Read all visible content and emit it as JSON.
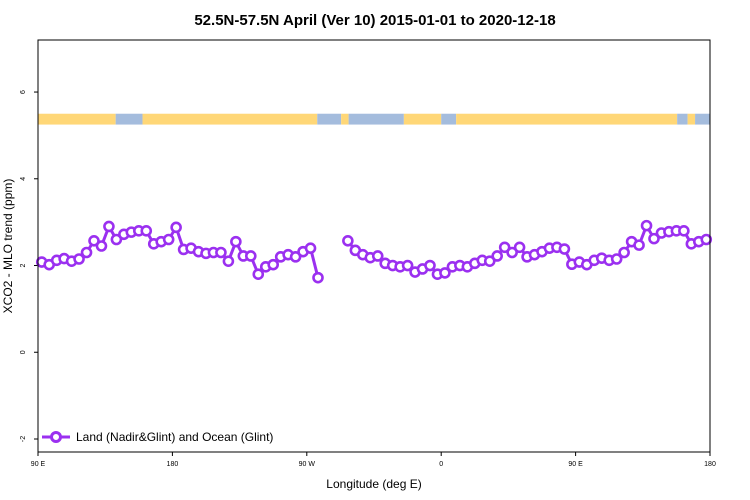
{
  "chart_data": {
    "type": "line",
    "title": "52.5N-57.5N April (Ver 10)   2015-01-01 to 2020-12-18",
    "xlabel": "Longitude (deg E)",
    "ylabel": "XCO2 - MLO trend (ppm)",
    "xlim": [
      90,
      540
    ],
    "ylim": [
      -2.3,
      7.2
    ],
    "x_ticks": [
      {
        "value": 90,
        "label": "90 E"
      },
      {
        "value": 180,
        "label": "180"
      },
      {
        "value": 270,
        "label": "90 W"
      },
      {
        "value": 360,
        "label": "0"
      },
      {
        "value": 450,
        "label": "90 E"
      },
      {
        "value": 540,
        "label": "180"
      }
    ],
    "y_ticks": [
      {
        "value": -2,
        "label": "-2"
      },
      {
        "value": 0,
        "label": "0"
      },
      {
        "value": 2,
        "label": "2"
      },
      {
        "value": 4,
        "label": "4"
      },
      {
        "value": 6,
        "label": "6"
      }
    ],
    "colors": {
      "series": "#9b30f0",
      "land": "#ffd777",
      "ocean": "#a4bcdd"
    },
    "land_ocean_band": {
      "y_range": [
        5.25,
        5.5
      ],
      "segments": [
        {
          "type": "land",
          "x0": 90,
          "x1": 142
        },
        {
          "type": "ocean",
          "x0": 142,
          "x1": 160
        },
        {
          "type": "land",
          "x0": 160,
          "x1": 277
        },
        {
          "type": "ocean",
          "x0": 277,
          "x1": 293
        },
        {
          "type": "land",
          "x0": 293,
          "x1": 298
        },
        {
          "type": "ocean",
          "x0": 298,
          "x1": 335
        },
        {
          "type": "land",
          "x0": 335,
          "x1": 360
        },
        {
          "type": "ocean",
          "x0": 360,
          "x1": 370
        },
        {
          "type": "land",
          "x0": 370,
          "x1": 518
        },
        {
          "type": "ocean",
          "x0": 518,
          "x1": 525
        },
        {
          "type": "land",
          "x0": 525,
          "x1": 530
        },
        {
          "type": "ocean",
          "x0": 530,
          "x1": 540
        }
      ]
    },
    "legend": {
      "position": "bottom-left",
      "entries": [
        "Land (Nadir&Glint) and Ocean (Glint)"
      ]
    },
    "series": [
      {
        "name": "Land (Nadir&Glint) and Ocean (Glint)",
        "segments": [
          [
            [
              92.5,
              2.08
            ],
            [
              97.5,
              2.02
            ],
            [
              102.5,
              2.12
            ],
            [
              107.5,
              2.16
            ],
            [
              112.5,
              2.1
            ],
            [
              117.5,
              2.15
            ],
            [
              122.5,
              2.3
            ],
            [
              127.5,
              2.57
            ],
            [
              132.5,
              2.45
            ],
            [
              137.5,
              2.9
            ],
            [
              142.5,
              2.6
            ],
            [
              147.5,
              2.72
            ],
            [
              152.5,
              2.77
            ],
            [
              157.5,
              2.8
            ],
            [
              162.5,
              2.8
            ],
            [
              167.5,
              2.5
            ],
            [
              172.5,
              2.55
            ],
            [
              177.5,
              2.6
            ],
            [
              182.5,
              2.88
            ],
            [
              187.5,
              2.37
            ],
            [
              192.5,
              2.4
            ],
            [
              197.5,
              2.32
            ],
            [
              202.5,
              2.28
            ],
            [
              207.5,
              2.3
            ],
            [
              212.5,
              2.3
            ],
            [
              217.5,
              2.1
            ],
            [
              222.5,
              2.55
            ],
            [
              227.5,
              2.22
            ],
            [
              232.5,
              2.22
            ],
            [
              237.5,
              1.8
            ],
            [
              242.5,
              1.97
            ],
            [
              247.5,
              2.02
            ],
            [
              252.5,
              2.2
            ],
            [
              257.5,
              2.25
            ],
            [
              262.5,
              2.2
            ],
            [
              267.5,
              2.32
            ],
            [
              272.5,
              2.4
            ],
            [
              277.5,
              1.72
            ]
          ],
          [
            [
              297.5,
              2.57
            ],
            [
              302.5,
              2.35
            ],
            [
              307.5,
              2.25
            ],
            [
              312.5,
              2.18
            ],
            [
              317.5,
              2.22
            ],
            [
              322.5,
              2.05
            ],
            [
              327.5,
              2.0
            ],
            [
              332.5,
              1.97
            ],
            [
              337.5,
              2.0
            ],
            [
              342.5,
              1.85
            ],
            [
              347.5,
              1.92
            ],
            [
              352.5,
              2.0
            ],
            [
              357.5,
              1.8
            ],
            [
              362.5,
              1.83
            ],
            [
              367.5,
              1.97
            ],
            [
              372.5,
              2.0
            ],
            [
              377.5,
              1.97
            ],
            [
              382.5,
              2.05
            ],
            [
              387.5,
              2.12
            ],
            [
              392.5,
              2.1
            ],
            [
              397.5,
              2.22
            ],
            [
              402.5,
              2.42
            ],
            [
              407.5,
              2.3
            ],
            [
              412.5,
              2.42
            ],
            [
              417.5,
              2.2
            ],
            [
              422.5,
              2.25
            ],
            [
              427.5,
              2.32
            ],
            [
              432.5,
              2.4
            ],
            [
              437.5,
              2.42
            ],
            [
              442.5,
              2.38
            ],
            [
              447.5,
              2.03
            ],
            [
              452.5,
              2.08
            ],
            [
              457.5,
              2.02
            ],
            [
              462.5,
              2.12
            ],
            [
              467.5,
              2.17
            ],
            [
              472.5,
              2.12
            ],
            [
              477.5,
              2.15
            ],
            [
              482.5,
              2.3
            ],
            [
              487.5,
              2.55
            ],
            [
              492.5,
              2.47
            ],
            [
              497.5,
              2.92
            ],
            [
              502.5,
              2.62
            ],
            [
              507.5,
              2.75
            ],
            [
              512.5,
              2.78
            ],
            [
              517.5,
              2.8
            ],
            [
              522.5,
              2.8
            ],
            [
              527.5,
              2.5
            ],
            [
              532.5,
              2.55
            ],
            [
              537.5,
              2.6
            ]
          ]
        ]
      }
    ]
  }
}
